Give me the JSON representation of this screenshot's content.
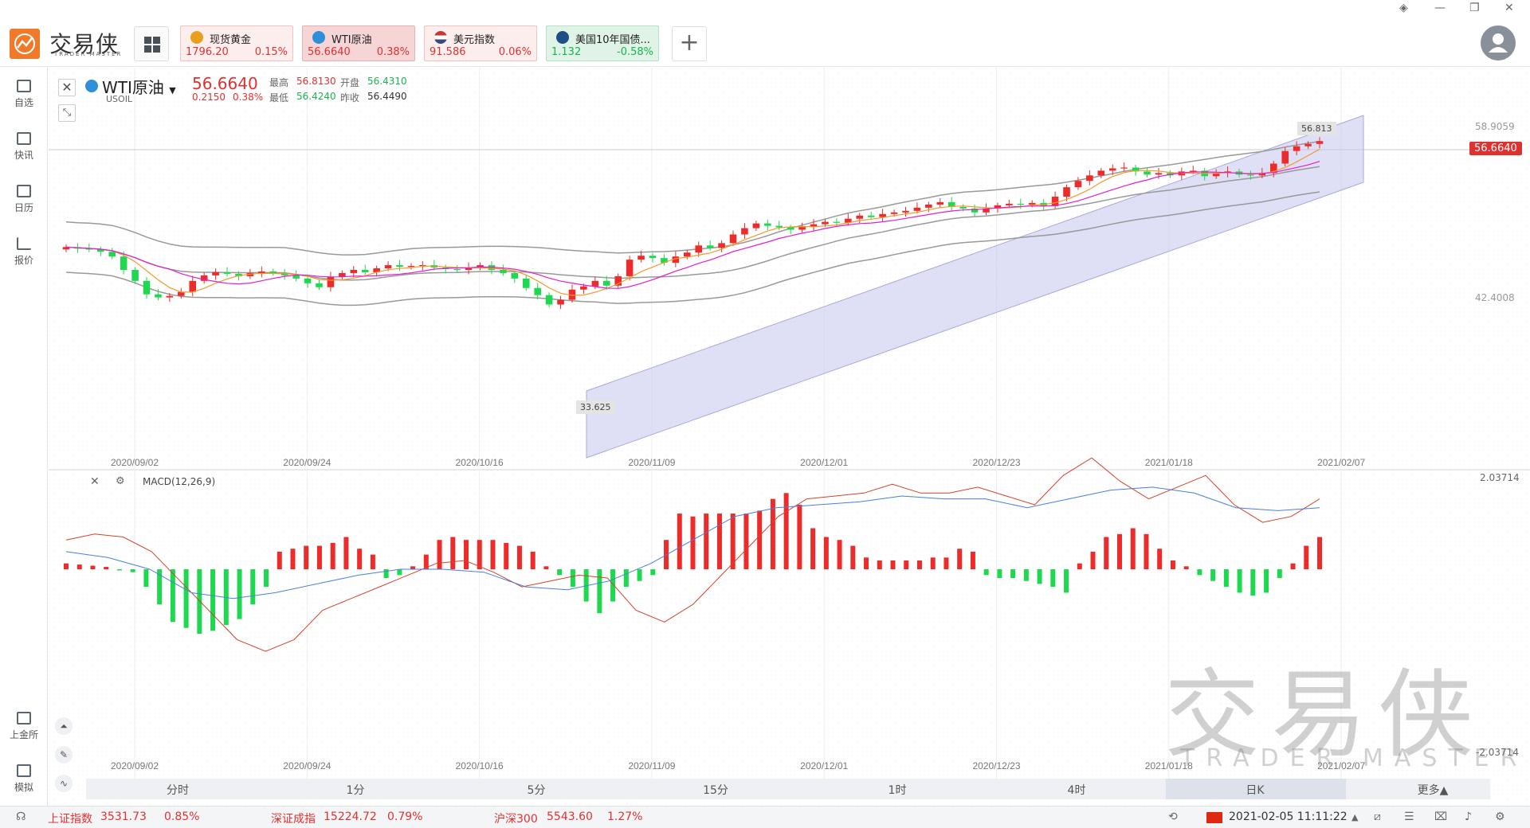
{
  "app": {
    "logo_text": "交易侠",
    "logo_sub": "TRADER MASTER"
  },
  "quotes": [
    {
      "name": "现货黄金",
      "price": "1796.20",
      "change": "0.15%",
      "icon": "gold-icon",
      "color": "#e03131",
      "bg": "#fdeeee"
    },
    {
      "name": "WTI原油",
      "price": "56.6640",
      "change": "0.38%",
      "icon": "oil-icon",
      "color": "#e03131",
      "bg": "#f8d9d9"
    },
    {
      "name": "美元指数",
      "price": "91.586",
      "change": "0.06%",
      "icon": "us-flag-icon",
      "color": "#e03131",
      "bg": "#fdeeee"
    },
    {
      "name": "美国10年国债...",
      "price": "1.132",
      "change": "-0.58%",
      "icon": "bond-icon",
      "color": "#19b34f",
      "bg": "#e6f6ec"
    }
  ],
  "window_controls": [
    "settings-icon",
    "minimize-icon",
    "restore-icon",
    "close-icon"
  ],
  "nav": [
    {
      "label": "自选",
      "icon": "bookmark-add-icon"
    },
    {
      "label": "快讯",
      "icon": "news-icon"
    },
    {
      "label": "日历",
      "icon": "calendar-icon"
    },
    {
      "label": "报价",
      "icon": "trend-icon"
    },
    {
      "label": "上金所",
      "icon": "exchange-icon"
    },
    {
      "label": "模拟",
      "icon": "wallet-icon"
    }
  ],
  "instrument": {
    "name": "WTI原油",
    "code": "USOIL",
    "price": "56.6640",
    "change": "0.2150",
    "change_pct": "0.38%",
    "high_label": "最高",
    "high": "56.8130",
    "open_label": "开盘",
    "open": "56.4310",
    "low_label": "最低",
    "low": "56.4240",
    "prev_label": "昨收",
    "prev": "56.4490"
  },
  "macd": {
    "label": "MACD(12,26,9)",
    "ytop": "2.03714",
    "ybottom": "-2.03714"
  },
  "price_axis": {
    "top_tick": "58.9059",
    "mid_tick": "42.4008",
    "current": "56.6640",
    "peak_label": "56.813",
    "low_label": "33.625"
  },
  "dates": [
    "2020/09/02",
    "2020/09/24",
    "2020/10/16",
    "2020/11/09",
    "2020/12/01",
    "2020/12/23",
    "2021/01/18",
    "2021/02/07"
  ],
  "tabs": [
    "分时",
    "1分",
    "5分",
    "15分",
    "1时",
    "4时",
    "日K",
    "更多▲"
  ],
  "active_tab": "日K",
  "status": {
    "idx1_name": "上证指数",
    "idx1_val": "3531.73",
    "idx1_chg": "0.85%",
    "idx2_name": "深证成指",
    "idx2_val": "15224.72",
    "idx2_chg": "0.79%",
    "idx3_name": "沪深300",
    "idx3_val": "5543.60",
    "idx3_chg": "1.27%",
    "datetime": "2021-02-05 11:11:22"
  },
  "watermark": {
    "cn": "交易侠",
    "en": "TRADER MASTER"
  },
  "chart_data": {
    "type": "candlestick",
    "instrument": "WTI原油",
    "x": [
      "2020/09/02",
      "2020/09/24",
      "2020/10/16",
      "2020/11/09",
      "2020/12/01",
      "2020/12/23",
      "2021/01/18",
      "2021/02/07"
    ],
    "closes": [
      43.2,
      43.0,
      42.9,
      42.6,
      42.0,
      40.3,
      38.9,
      37.2,
      36.8,
      37.0,
      37.5,
      38.9,
      39.6,
      40.0,
      39.8,
      39.5,
      39.9,
      40.1,
      39.9,
      39.6,
      39.2,
      38.6,
      38.1,
      39.4,
      39.9,
      40.3,
      40.0,
      40.5,
      40.9,
      40.7,
      40.8,
      40.9,
      40.6,
      40.4,
      40.3,
      40.6,
      40.9,
      40.3,
      39.9,
      39.2,
      38.0,
      37.1,
      35.9,
      36.5,
      37.8,
      38.2,
      38.9,
      38.3,
      39.5,
      41.6,
      42.1,
      41.8,
      41.2,
      42.0,
      42.5,
      43.4,
      43.1,
      43.7,
      44.8,
      45.6,
      46.2,
      45.9,
      45.7,
      45.4,
      45.8,
      46.1,
      46.4,
      46.3,
      46.8,
      47.2,
      47.0,
      47.4,
      47.6,
      47.8,
      48.2,
      48.6,
      48.9,
      48.3,
      48.1,
      47.6,
      48.1,
      48.5,
      48.7,
      48.6,
      48.8,
      48.4,
      49.6,
      50.8,
      51.6,
      52.3,
      52.9,
      53.2,
      53.3,
      52.8,
      52.4,
      52.6,
      52.3,
      52.8,
      52.9,
      52.2,
      52.6,
      52.8,
      52.4,
      52.3,
      52.6,
      53.8,
      55.4,
      56.0,
      56.3,
      56.66
    ],
    "ylim": [
      33.625,
      58.9059
    ],
    "high": 56.813,
    "low": 33.625,
    "current": 56.664,
    "macd": {
      "ylim": [
        -2.03714,
        2.03714
      ],
      "histogram": [
        0.1,
        0.08,
        0.06,
        0.04,
        -0.02,
        -0.05,
        -0.3,
        -0.6,
        -0.9,
        -1.0,
        -1.1,
        -1.05,
        -0.95,
        -0.85,
        -0.6,
        -0.3,
        0.3,
        0.35,
        0.4,
        0.4,
        0.45,
        0.55,
        0.35,
        0.25,
        -0.15,
        -0.1,
        0.05,
        0.25,
        0.5,
        0.55,
        0.5,
        0.5,
        0.5,
        0.45,
        0.4,
        0.3,
        0.05,
        -0.1,
        -0.3,
        -0.55,
        -0.75,
        -0.55,
        -0.3,
        -0.2,
        -0.1,
        0.5,
        0.95,
        0.9,
        0.95,
        0.95,
        0.95,
        0.95,
        1.0,
        1.2,
        1.3,
        1.1,
        0.7,
        0.55,
        0.5,
        0.4,
        0.2,
        0.15,
        0.15,
        0.15,
        0.15,
        0.2,
        0.2,
        0.35,
        0.3,
        -0.1,
        -0.15,
        -0.15,
        -0.2,
        -0.25,
        -0.3,
        -0.4,
        0.1,
        0.3,
        0.55,
        0.6,
        0.7,
        0.6,
        0.35,
        0.15,
        0.05,
        -0.1,
        -0.2,
        -0.3,
        -0.4,
        -0.45,
        -0.4,
        -0.15,
        0.1,
        0.4,
        0.55
      ],
      "dif": [
        0.5,
        0.6,
        0.55,
        0.3,
        -0.2,
        -0.7,
        -1.2,
        -1.4,
        -1.2,
        -0.7,
        -0.5,
        -0.3,
        -0.1,
        0.1,
        0.15,
        -0.05,
        -0.3,
        -0.2,
        -0.1,
        -0.15,
        -0.7,
        -0.9,
        -0.6,
        -0.1,
        0.4,
        0.9,
        1.2,
        1.25,
        1.3,
        1.45,
        1.3,
        1.3,
        1.4,
        1.25,
        1.1,
        1.6,
        1.9,
        1.5,
        1.2,
        1.4,
        1.6,
        1.1,
        0.8,
        0.9,
        1.2
      ],
      "dea": [
        0.3,
        0.2,
        0.0,
        -0.4,
        -0.5,
        -0.4,
        -0.25,
        -0.1,
        0.0,
        0.0,
        -0.05,
        -0.3,
        -0.35,
        -0.2,
        0.1,
        0.5,
        0.9,
        1.05,
        1.1,
        1.15,
        1.25,
        1.2,
        1.2,
        1.05,
        1.2,
        1.35,
        1.4,
        1.3,
        1.05,
        1.0,
        1.05
      ]
    }
  }
}
